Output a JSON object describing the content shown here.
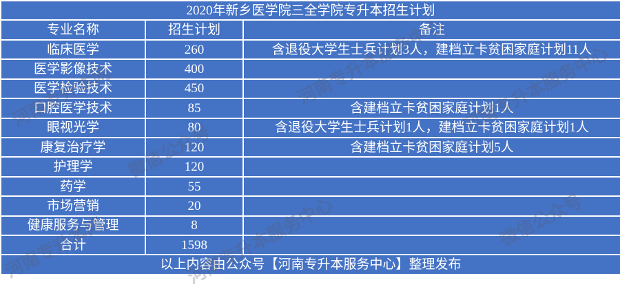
{
  "title": "2020年新乡医学院三全学院专升本招生计划",
  "headers": [
    "专业名称",
    "招生计划",
    "备注"
  ],
  "rows": [
    {
      "major": "临床医学",
      "plan": "260",
      "note": "含退役大学生士兵计划3人，建档立卡贫困家庭计划11人"
    },
    {
      "major": "医学影像技术",
      "plan": "400",
      "note": ""
    },
    {
      "major": "医学检验技术",
      "plan": "450",
      "note": ""
    },
    {
      "major": "口腔医学技术",
      "plan": "85",
      "note": "含建档立卡贫困家庭计划1人"
    },
    {
      "major": "眼视光学",
      "plan": "80",
      "note": "含退役大学生士兵计划1人，建档立卡贫困家庭计划1人"
    },
    {
      "major": "康复治疗学",
      "plan": "120",
      "note": "含建档立卡贫困家庭计划5人"
    },
    {
      "major": "护理学",
      "plan": "120",
      "note": ""
    },
    {
      "major": "药学",
      "plan": "55",
      "note": ""
    },
    {
      "major": "市场营销",
      "plan": "20",
      "note": ""
    },
    {
      "major": "健康服务与管理",
      "plan": "8",
      "note": ""
    },
    {
      "major": "合计",
      "plan": "1598",
      "note": ""
    }
  ],
  "footer": "以上内容由公众号【河南专升本服务中心】整理发布",
  "watermarks": [
    "河南专升本网",
    "河南专升本服务中心",
    "微信公众号"
  ],
  "colors": {
    "cell_bg": "#4472C4",
    "text": "#FFFFFF",
    "grid": "#FFFFFF"
  }
}
